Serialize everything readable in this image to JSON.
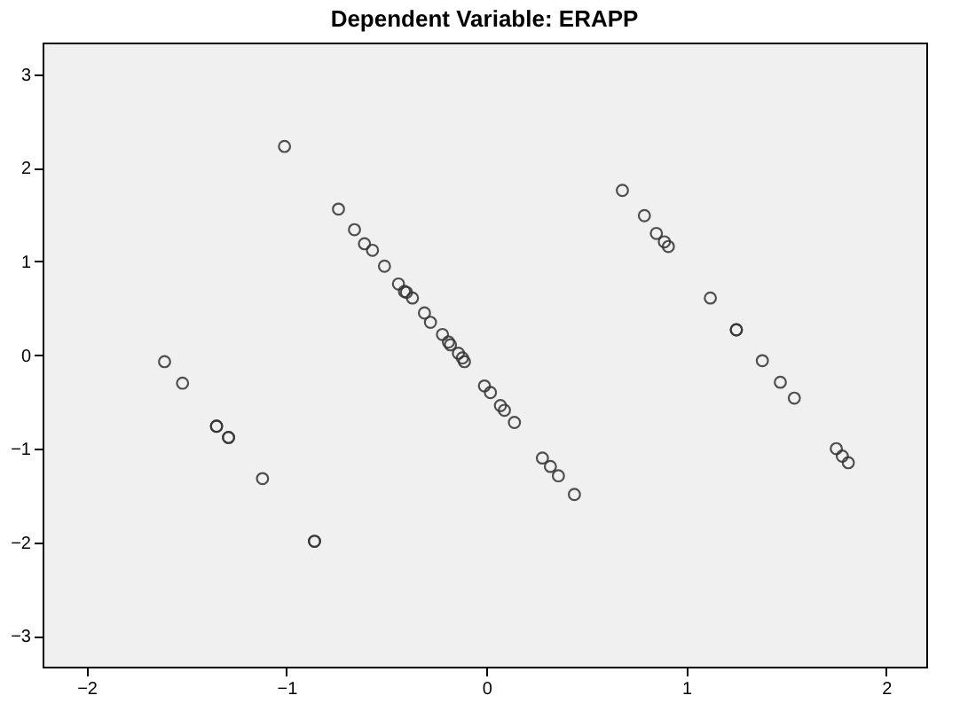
{
  "chart_data": {
    "type": "scatter",
    "title": "Dependent Variable: ERAPP",
    "xlim": [
      -2.22,
      2.2
    ],
    "ylim": [
      -3.33,
      3.34
    ],
    "xticks": [
      -2,
      -1,
      0,
      1,
      2
    ],
    "yticks": [
      -3,
      -2,
      -1,
      0,
      1,
      2,
      3
    ],
    "grid": false,
    "marker": "circle",
    "series": [
      {
        "color": "#333333",
        "x": [
          -1.61,
          -1.52,
          -1.35,
          -1.35,
          -1.29,
          -1.29,
          -1.12,
          -0.86,
          -0.86,
          -1.01,
          -0.74,
          -0.66,
          -0.61,
          -0.57,
          -0.51,
          -0.44,
          -0.41,
          -0.4,
          -0.37,
          -0.31,
          -0.28,
          -0.22,
          -0.19,
          -0.18,
          -0.14,
          -0.12,
          -0.11,
          -0.01,
          0.02,
          0.07,
          0.09,
          0.14,
          0.28,
          0.32,
          0.36,
          0.44,
          0.68,
          0.79,
          0.85,
          0.89,
          0.91,
          1.12,
          1.25,
          1.25,
          1.38,
          1.47,
          1.54,
          1.75,
          1.78,
          1.81
        ],
        "values": [
          -0.07,
          -0.3,
          -0.76,
          -0.76,
          -0.88,
          -0.88,
          -1.32,
          -1.99,
          -1.99,
          2.23,
          1.56,
          1.34,
          1.19,
          1.12,
          0.95,
          0.76,
          0.68,
          0.67,
          0.61,
          0.45,
          0.35,
          0.22,
          0.14,
          0.11,
          0.02,
          -0.03,
          -0.07,
          -0.33,
          -0.4,
          -0.54,
          -0.59,
          -0.72,
          -1.1,
          -1.19,
          -1.29,
          -1.49,
          1.76,
          1.49,
          1.3,
          1.21,
          1.16,
          0.61,
          0.27,
          0.27,
          -0.06,
          -0.29,
          -0.46,
          -1.0,
          -1.08,
          -1.15
        ]
      }
    ]
  }
}
